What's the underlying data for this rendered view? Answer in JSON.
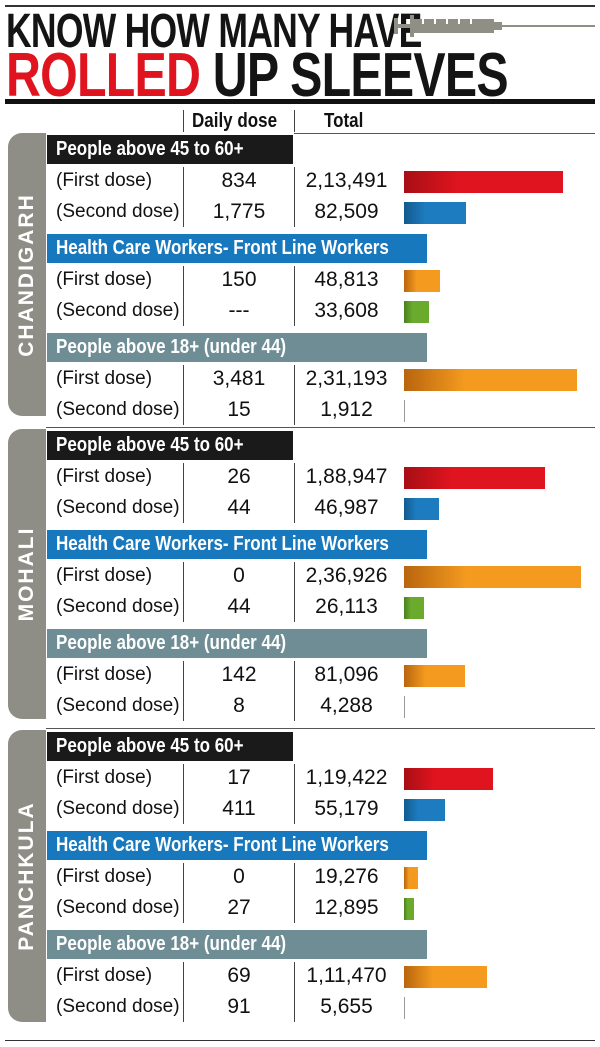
{
  "title": {
    "line1": "KNOW HOW MANY HAVE",
    "line2_red": "ROLLED",
    "line2_black": "UP SLEEVES"
  },
  "icons": {
    "header": "syringe-icon"
  },
  "colors": {
    "red": "#e0141e",
    "blue": "#1d7cc0",
    "orange": "#f39a1f",
    "green": "#6aab2e",
    "black_band": "#1a1a1a",
    "blue_band": "#1878bd",
    "teal_band": "#6f8d95",
    "side_tab": "#8e8e86"
  },
  "chart_data": {
    "type": "table",
    "columns": {
      "daily": "Daily dose",
      "total": "Total"
    },
    "sections": [
      {
        "name": "CHANDIGARH",
        "groups": [
          {
            "title": "People above 45 to 60+",
            "rows": [
              {
                "label": "(First dose)",
                "daily": "834",
                "total": "2,13,491",
                "value": 213491
              },
              {
                "label": "(Second dose)",
                "daily": "1,775",
                "total": "82,509",
                "value": 82509
              }
            ]
          },
          {
            "title": "Health Care Workers- Front Line Workers",
            "rows": [
              {
                "label": "(First dose)",
                "daily": "150",
                "total": "48,813",
                "value": 48813
              },
              {
                "label": "(Second dose)",
                "daily": "---",
                "total": "33,608",
                "value": 33608
              }
            ]
          },
          {
            "title": "People above  18+ (under 44)",
            "rows": [
              {
                "label": "(First dose)",
                "daily": "3,481",
                "total": "2,31,193",
                "value": 231193
              },
              {
                "label": "(Second dose)",
                "daily": "15",
                "total": "1,912",
                "value": 1912
              }
            ]
          }
        ]
      },
      {
        "name": "MOHALI",
        "groups": [
          {
            "title": "People above 45 to 60+",
            "rows": [
              {
                "label": "(First dose)",
                "daily": "26",
                "total": "1,88,947",
                "value": 188947
              },
              {
                "label": "(Second dose)",
                "daily": "44",
                "total": "46,987",
                "value": 46987
              }
            ]
          },
          {
            "title": "Health Care Workers- Front Line Workers",
            "rows": [
              {
                "label": "(First dose)",
                "daily": "0",
                "total": "2,36,926",
                "value": 236926
              },
              {
                "label": "(Second dose)",
                "daily": "44",
                "total": "26,113",
                "value": 26113
              }
            ]
          },
          {
            "title": "People above  18+ (under 44)",
            "rows": [
              {
                "label": "(First dose)",
                "daily": "142",
                "total": "81,096",
                "value": 81096
              },
              {
                "label": "(Second dose)",
                "daily": "8",
                "total": "4,288",
                "value": 4288
              }
            ]
          }
        ]
      },
      {
        "name": "PANCHKULA",
        "groups": [
          {
            "title": "People above 45 to 60+",
            "rows": [
              {
                "label": "(First dose)",
                "daily": "17",
                "total": "1,19,422",
                "value": 119422
              },
              {
                "label": "(Second dose)",
                "daily": "411",
                "total": "55,179",
                "value": 55179
              }
            ]
          },
          {
            "title": "Health Care Workers- Front Line Workers",
            "rows": [
              {
                "label": "(First dose)",
                "daily": "0",
                "total": "19,276",
                "value": 19276
              },
              {
                "label": "(Second dose)",
                "daily": "27",
                "total": "12,895",
                "value": 12895
              }
            ]
          },
          {
            "title": "People above  18+ (under 44)",
            "rows": [
              {
                "label": "(First dose)",
                "daily": "69",
                "total": "1,11,470",
                "value": 111470
              },
              {
                "label": "(Second dose)",
                "daily": "91",
                "total": "5,655",
                "value": 5655
              }
            ]
          }
        ]
      }
    ]
  }
}
